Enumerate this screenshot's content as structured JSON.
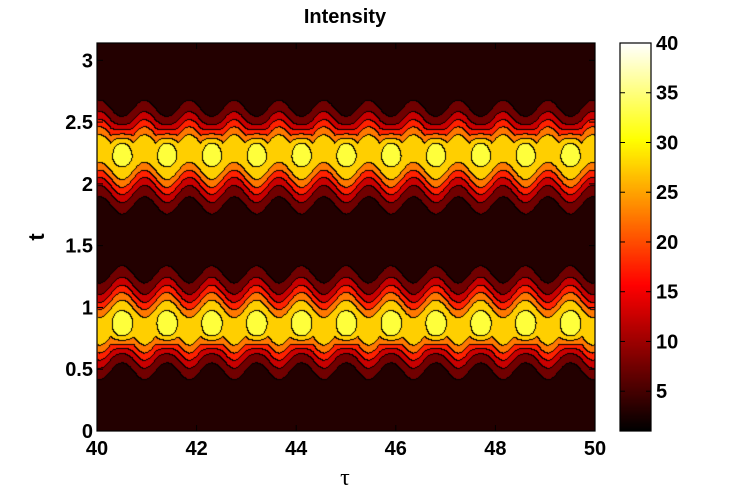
{
  "chart_data": {
    "type": "heatmap",
    "title": "Intensity",
    "xlabel": "τ",
    "ylabel": "t",
    "xlim": [
      40,
      50
    ],
    "ylim": [
      0,
      3.14
    ],
    "x_ticks": [
      40,
      42,
      44,
      46,
      48,
      50
    ],
    "y_ticks": [
      0,
      0.5,
      1,
      1.5,
      2,
      2.5,
      3
    ],
    "x_tick_labels": [
      "40",
      "42",
      "44",
      "46",
      "48",
      "50"
    ],
    "y_tick_labels": [
      "0",
      "0.5",
      "1",
      "1.5",
      "2",
      "2.5",
      "3"
    ],
    "colorbar": {
      "colormap": "hot",
      "range": [
        1,
        40
      ],
      "ticks": [
        5,
        10,
        15,
        20,
        25,
        30,
        35,
        40
      ],
      "tick_labels": [
        "5",
        "10",
        "15",
        "20",
        "25",
        "30",
        "35",
        "40"
      ]
    },
    "field": {
      "description_of_structure": "two horizontal bands of intensity with periodic modulation along tau",
      "bands": [
        {
          "t_center": 2.22,
          "t_width": 0.28,
          "peak_value": 39,
          "peak_t": 2.33,
          "wave_direction": "down-bumps"
        },
        {
          "t_center": 0.88,
          "t_width": 0.28,
          "peak_value": 39,
          "peak_t": 0.8,
          "wave_direction": "up-bumps"
        }
      ],
      "tau_period": 0.9,
      "first_peak_tau": 40.5,
      "background_value": 1
    },
    "contour_levels": [
      5,
      10,
      15,
      20,
      25,
      30,
      35
    ],
    "grid": false
  }
}
